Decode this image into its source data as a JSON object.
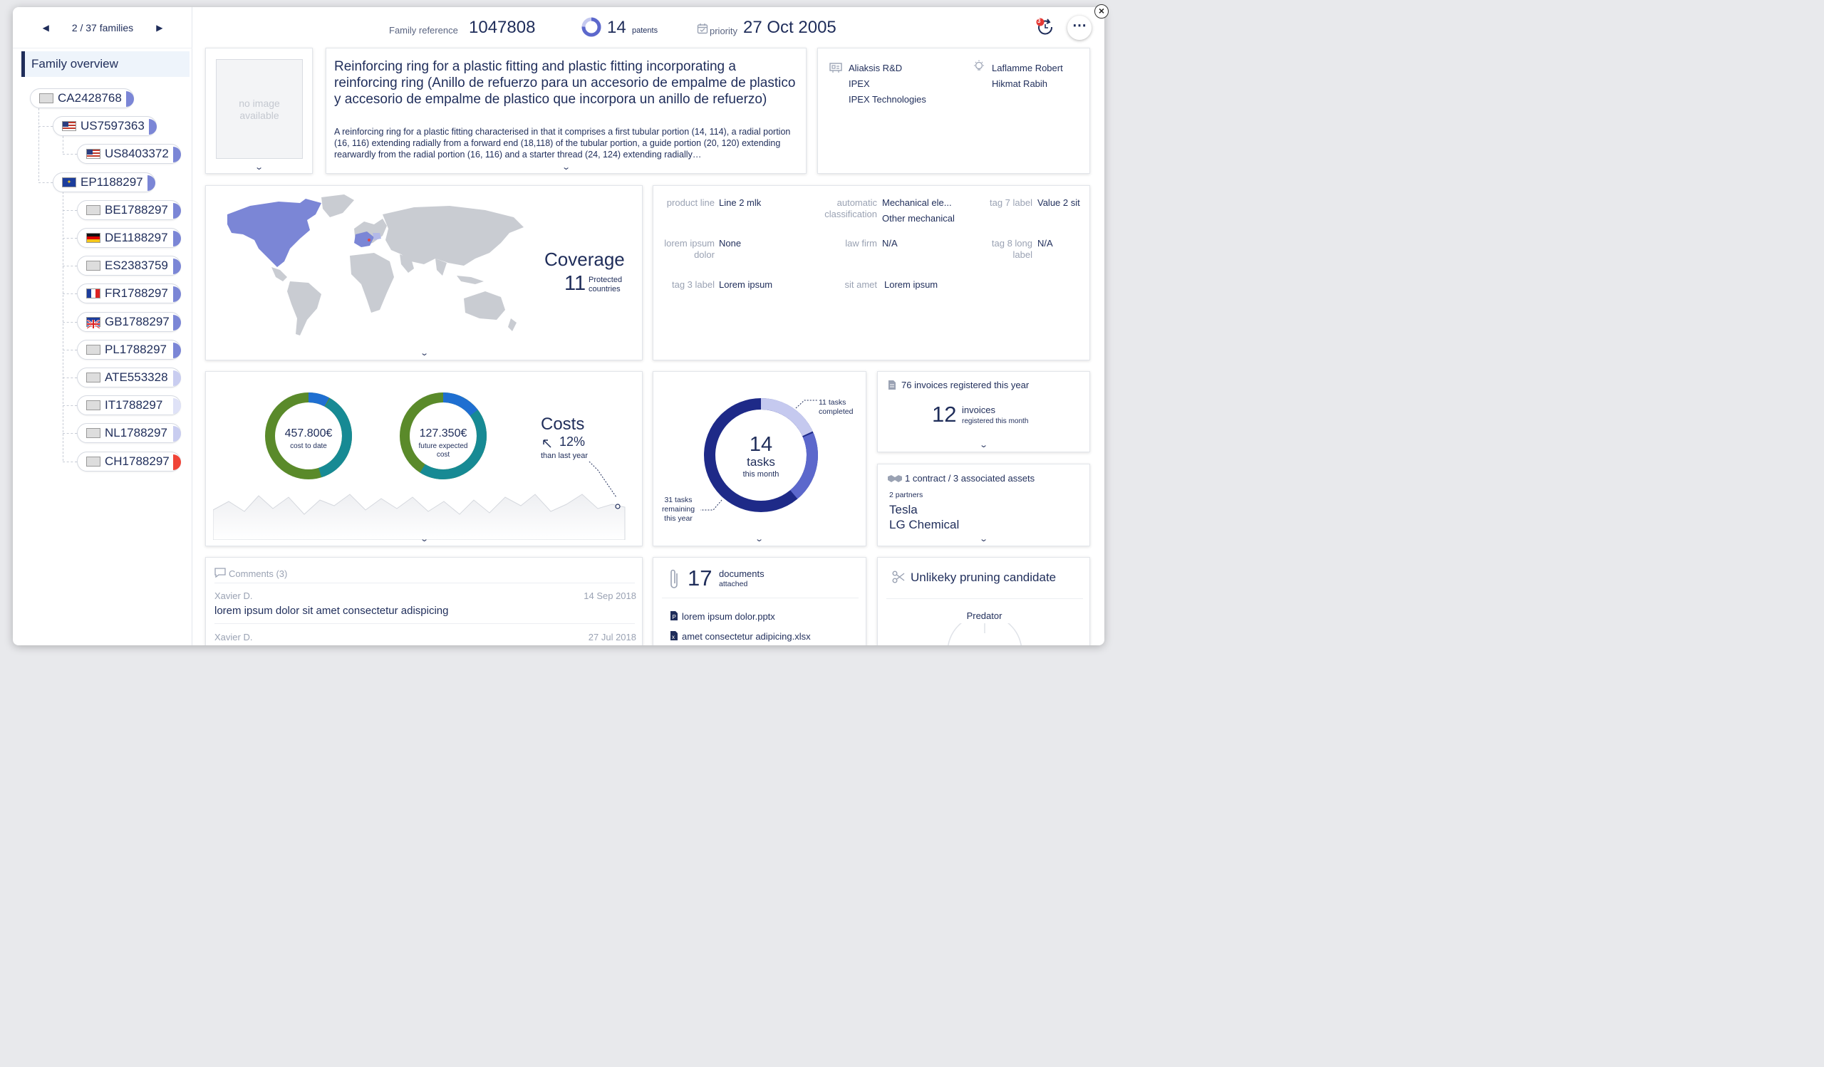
{
  "nav": {
    "counter": "2 / 37 families",
    "prev_icon": "caret-left-icon",
    "next_icon": "caret-right-icon"
  },
  "sidebar": {
    "overview_label": "Family overview",
    "tree": [
      {
        "id": "CA2428768",
        "flag": "none",
        "fill": "#7b86d6"
      },
      {
        "id": "US7597363",
        "flag": "us",
        "fill": "#7b86d6"
      },
      {
        "id": "US8403372",
        "flag": "us",
        "fill": "#7b86d6"
      },
      {
        "id": "EP1188297",
        "flag": "eu",
        "fill": "#7b86d6"
      },
      {
        "id": "BE1788297",
        "flag": "none",
        "fill": "#7b86d6"
      },
      {
        "id": "DE1188297",
        "flag": "de",
        "fill": "#7b86d6"
      },
      {
        "id": "ES2383759",
        "flag": "none",
        "fill": "#7b86d6"
      },
      {
        "id": "FR1788297",
        "flag": "fr",
        "fill": "#7b86d6"
      },
      {
        "id": "GB1788297",
        "flag": "gb",
        "fill": "#7b86d6"
      },
      {
        "id": "PL1788297",
        "flag": "none",
        "fill": "#7b86d6"
      },
      {
        "id": "ATE553328",
        "flag": "none",
        "fill": "#c9cdf0"
      },
      {
        "id": "IT1788297",
        "flag": "none",
        "fill": "#dfe2f7"
      },
      {
        "id": "NL1788297",
        "flag": "none",
        "fill": "#c9cdf0"
      },
      {
        "id": "CH1788297",
        "flag": "none",
        "fill": "#f04437"
      }
    ]
  },
  "header": {
    "family_ref_label": "Family reference",
    "family_ref": "1047808",
    "patents_count": "14",
    "patents_label": "patents",
    "priority_label": "priority",
    "priority_date": "27 Oct 2005",
    "notif_count": "3"
  },
  "summary": {
    "no_image": "no image available",
    "title": "Reinforcing ring for a plastic fitting and plastic fitting incorporating a reinforcing ring (Anillo de refuerzo para un accesorio de empalme de plastico y accesorio de empalme de plastico que incorpora un anillo de refuerzo)",
    "abstract": "A reinforcing ring for a plastic fitting characterised in that it comprises a first tubular portion (14, 114), a radial portion (16, 116) extending radially from a forward end (18,118) of the tubular portion, a guide portion (20, 120) extending rearwardly from the radial portion (16, 116) and a starter thread (24, 124) extending radially…"
  },
  "owners": {
    "assignees": [
      "Aliaksis R&D",
      "IPEX",
      "IPEX Technologies"
    ],
    "inventors": [
      "Laflamme Robert",
      "Hikmat Rabih"
    ]
  },
  "coverage": {
    "title": "Coverage",
    "count": "11",
    "label_line1": "Protected",
    "label_line2": "countries"
  },
  "tags": [
    {
      "k": "product line",
      "v": "Line 2 mlk"
    },
    {
      "k": "automatic classification",
      "v": "Mechanical ele...",
      "v2": "Other mechanical"
    },
    {
      "k": "tag 7 label",
      "v": "Value 2 sit"
    },
    {
      "k": "lorem ipsum dolor",
      "v": "None"
    },
    {
      "k": "law firm",
      "v": "N/A"
    },
    {
      "k": "tag 8 long label",
      "v": "N/A"
    },
    {
      "k": "tag 3 label",
      "v": "Lorem ipsum"
    },
    {
      "k": "sit amet",
      "v": "Lorem ipsum"
    }
  ],
  "costs": {
    "to_date_value": "457.800€",
    "to_date_label": "cost to date",
    "future_value": "127.350€",
    "future_label1": "future expected",
    "future_label2": "cost",
    "title": "Costs",
    "trend": "12%",
    "trend_label": "than last year"
  },
  "tasks": {
    "total": "14",
    "unit": "tasks",
    "period": "this month",
    "completed_label1": "11 tasks",
    "completed_label2": "completed",
    "remaining_label1": "31 tasks",
    "remaining_label2": "remaining",
    "remaining_label3": "this year"
  },
  "invoices": {
    "headline": "76 invoices registered this year",
    "count": "12",
    "label": "invoices",
    "sublabel": "registered this month"
  },
  "contracts": {
    "headline": "1 contract / 3 associated assets",
    "partners_label": "2 partners",
    "partners": [
      "Tesla",
      "LG Chemical"
    ]
  },
  "comments": {
    "title": "Comments (3)",
    "items": [
      {
        "author": "Xavier D.",
        "date": "14 Sep 2018",
        "text": "lorem ipsum dolor sit amet consectetur adispicing"
      },
      {
        "author": "Xavier D.",
        "date": "27 Jul 2018",
        "text": ""
      }
    ]
  },
  "documents": {
    "count": "17",
    "label1": "documents",
    "label2": "attached",
    "files": [
      "lorem ipsum dolor.pptx",
      "amet consectetur adipicing.xlsx"
    ]
  },
  "pruning": {
    "title": "Unlikeky pruning candidate",
    "gauge_label": "Predator"
  },
  "colors": {
    "navy": "#1f2d5a",
    "accent": "#7b86d6",
    "green": "#5a8a2a",
    "teal": "#178a94",
    "blue": "#1f6fd1",
    "dark": "#3a4752",
    "task_dark": "#1e2a88",
    "task_mid": "#5c68cc",
    "task_light": "#c5c9ef"
  }
}
